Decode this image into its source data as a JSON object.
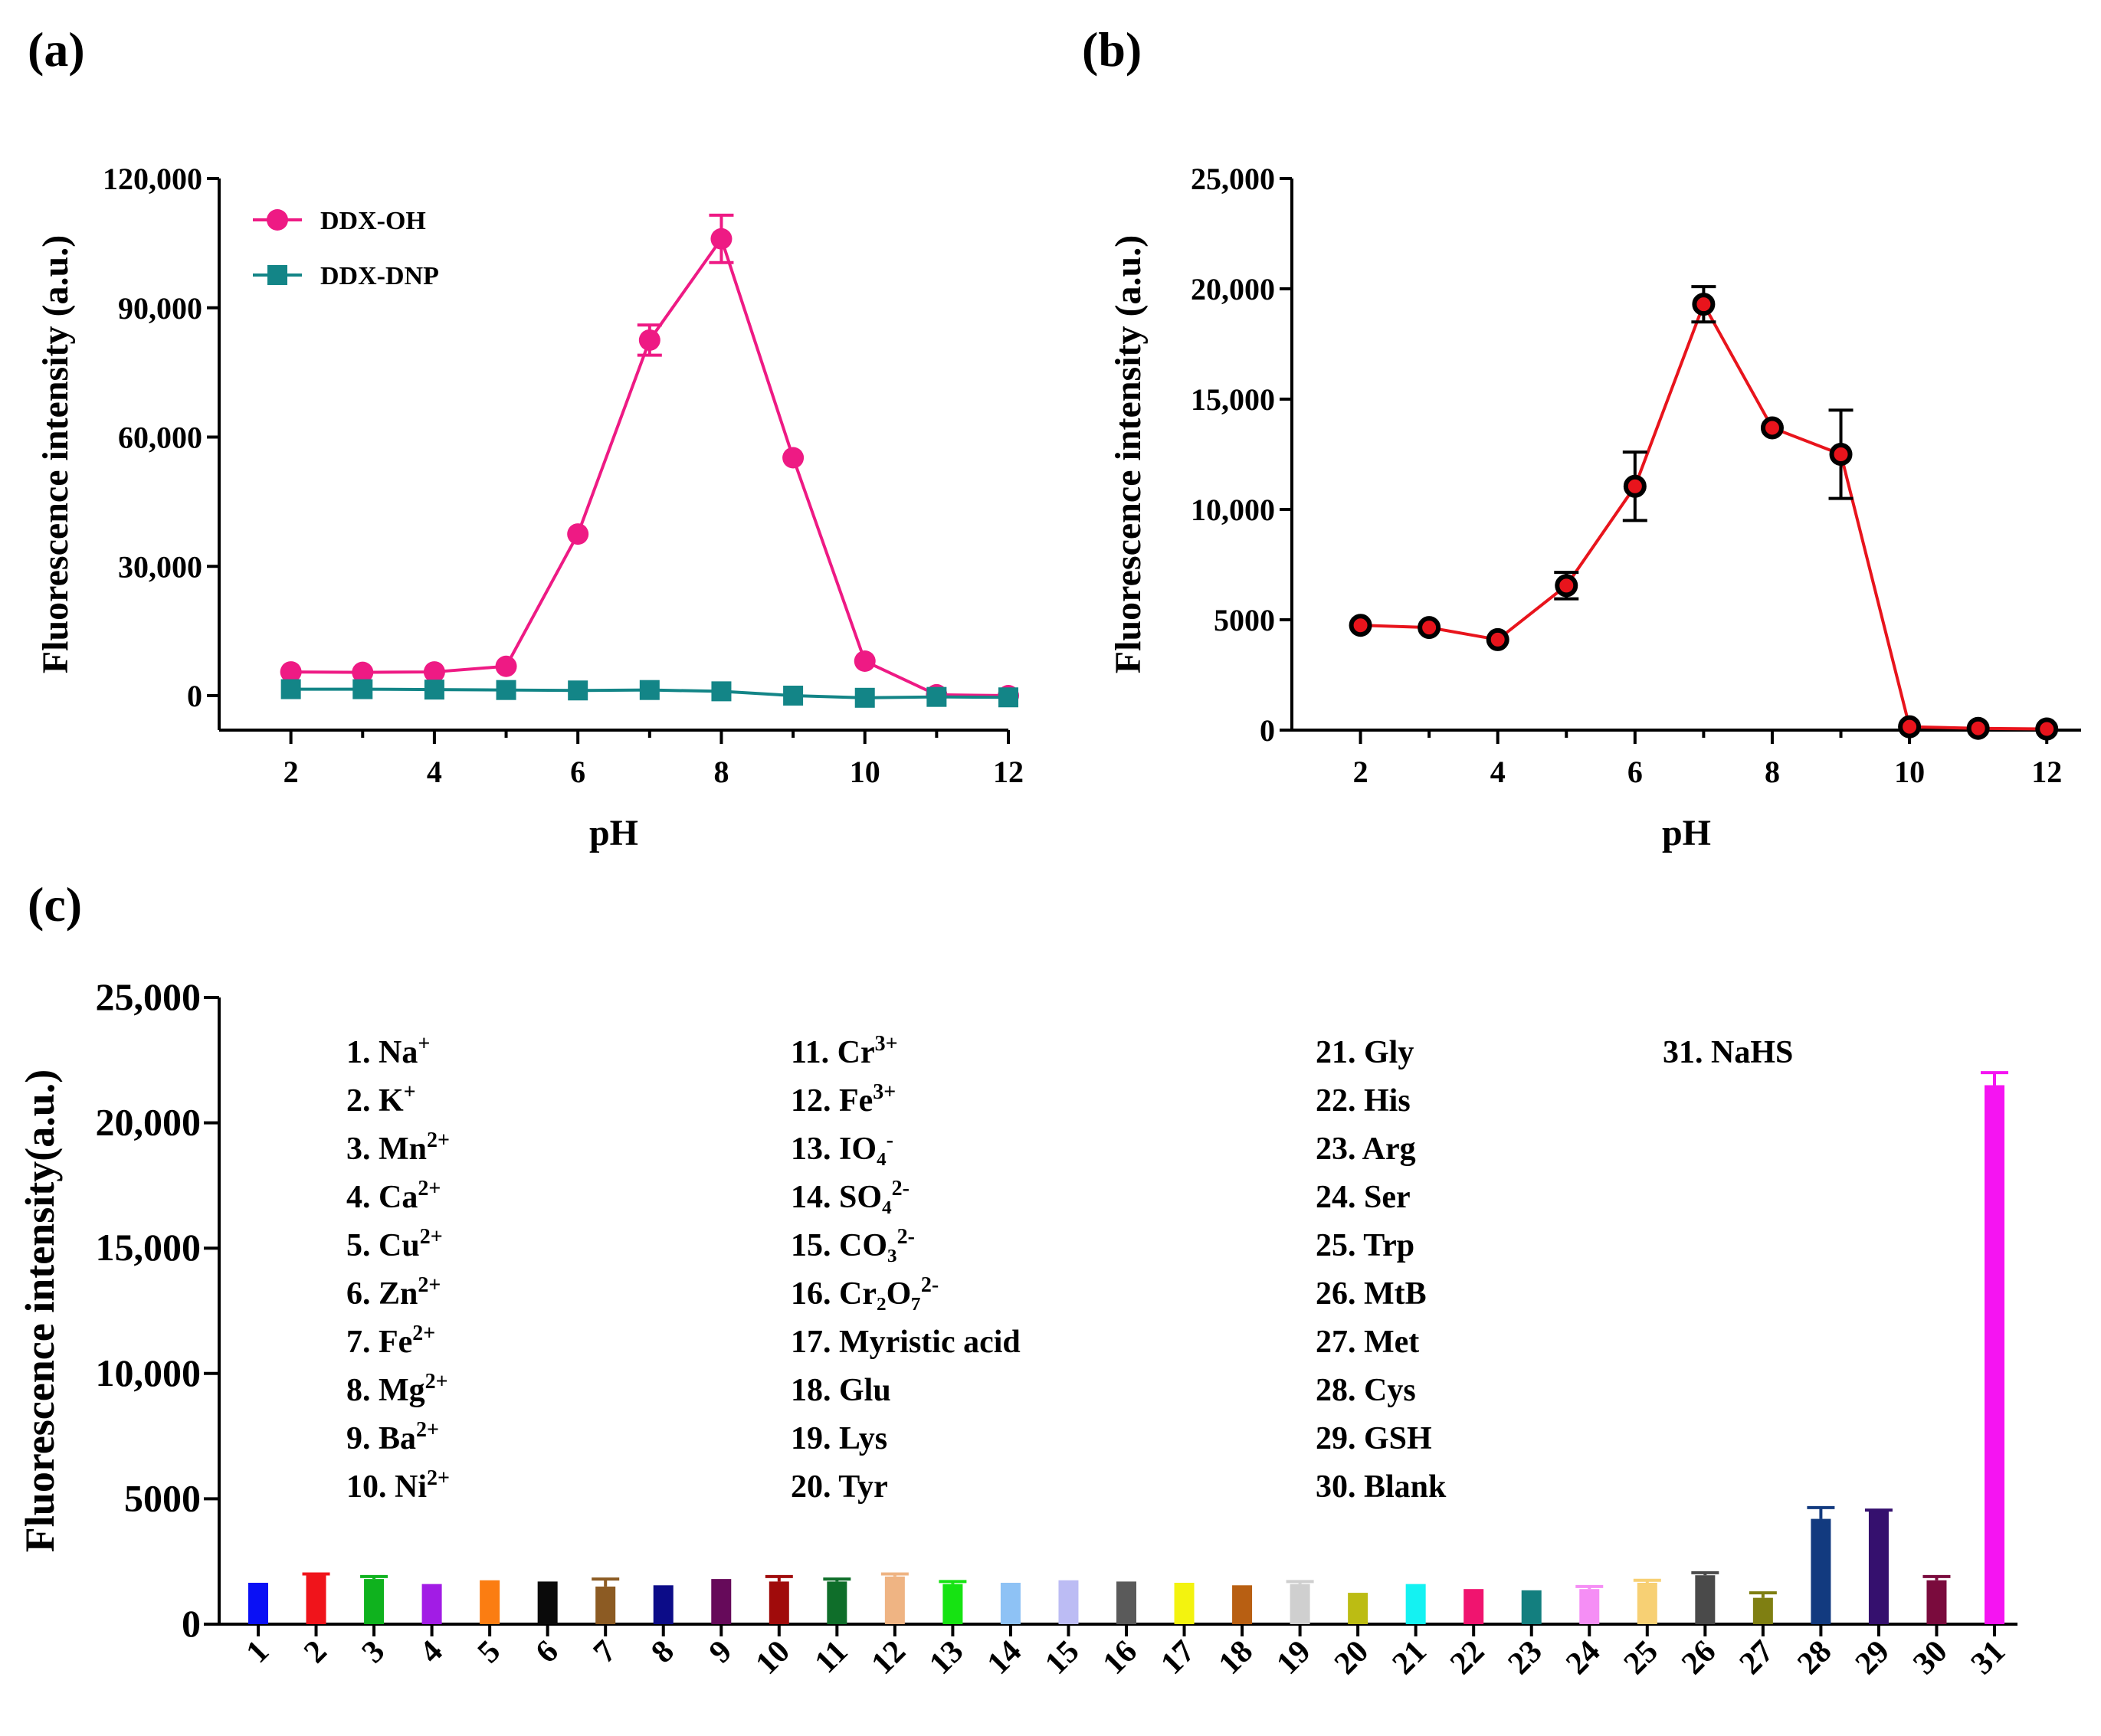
{
  "panels": {
    "a": "(a)",
    "b": "(b)",
    "c": "(c)"
  },
  "chart_data": [
    {
      "id": "a",
      "type": "line",
      "title": "",
      "xlabel": "pH",
      "ylabel": "Fluorescence intensity (a.u.)",
      "xlim": [
        1,
        12
      ],
      "ylim": [
        -8000,
        120000
      ],
      "xticks": [
        2,
        4,
        6,
        8,
        10,
        12
      ],
      "xtick_labels": [
        "2",
        "4",
        "6",
        "8",
        "10",
        "12"
      ],
      "yticks": [
        0,
        30000,
        60000,
        90000,
        120000
      ],
      "ytick_labels": [
        "0",
        "30,000",
        "60,000",
        "90,000",
        "120,000"
      ],
      "legend_position": "top-left",
      "series": [
        {
          "name": "DDX-OH",
          "color": "#ee1a84",
          "marker": "circle",
          "x": [
            2,
            3,
            4,
            5,
            6,
            7,
            8,
            9,
            10,
            11,
            12
          ],
          "values": [
            5500,
            5400,
            5500,
            6800,
            37500,
            82500,
            106000,
            55200,
            8000,
            200,
            0
          ],
          "errors": [
            0,
            0,
            0,
            0,
            0,
            3500,
            5500,
            0,
            0,
            0,
            0
          ]
        },
        {
          "name": "DDX-DNP",
          "color": "#138587",
          "marker": "square",
          "x": [
            2,
            3,
            4,
            5,
            6,
            7,
            8,
            9,
            10,
            11,
            12
          ],
          "values": [
            1500,
            1500,
            1400,
            1300,
            1200,
            1300,
            1000,
            0,
            -500,
            -300,
            -400
          ],
          "errors": [
            0,
            0,
            0,
            0,
            0,
            0,
            0,
            0,
            0,
            0,
            0
          ]
        }
      ]
    },
    {
      "id": "b",
      "type": "line",
      "title": "",
      "xlabel": "pH",
      "ylabel": "Fluorescence intensity (a.u.)",
      "xlim": [
        1,
        12.5
      ],
      "ylim": [
        0,
        25000
      ],
      "xticks": [
        2,
        4,
        6,
        8,
        10,
        12
      ],
      "xtick_labels": [
        "2",
        "4",
        "6",
        "8",
        "10",
        "12"
      ],
      "yticks": [
        0,
        5000,
        10000,
        15000,
        20000,
        25000
      ],
      "ytick_labels": [
        "0",
        "5000",
        "10,000",
        "15,000",
        "20,000",
        "25,000"
      ],
      "series": [
        {
          "name": "",
          "color": "#e8141c",
          "marker": "circle",
          "x": [
            2,
            3,
            4,
            5,
            6,
            7,
            8,
            9,
            10,
            11,
            12
          ],
          "values": [
            4750,
            4650,
            4100,
            6550,
            11050,
            19300,
            13700,
            12500,
            150,
            80,
            50
          ],
          "errors": [
            0,
            0,
            0,
            600,
            1550,
            800,
            0,
            2000,
            0,
            0,
            0
          ]
        }
      ]
    },
    {
      "id": "c",
      "type": "bar",
      "title": "",
      "xlabel": "",
      "ylabel": "Fluorescence intensity(a.u.)",
      "ylim": [
        0,
        25000
      ],
      "yticks": [
        0,
        5000,
        10000,
        15000,
        20000,
        25000
      ],
      "ytick_labels": [
        "0",
        "5000",
        "10,000",
        "15,000",
        "20,000",
        "25,000"
      ],
      "categories": [
        "1",
        "2",
        "3",
        "4",
        "5",
        "6",
        "7",
        "8",
        "9",
        "10",
        "11",
        "12",
        "13",
        "14",
        "15",
        "16",
        "17",
        "18",
        "19",
        "20",
        "21",
        "22",
        "23",
        "24",
        "25",
        "26",
        "27",
        "28",
        "29",
        "30",
        "31"
      ],
      "values": [
        1650,
        1950,
        1800,
        1600,
        1750,
        1700,
        1500,
        1550,
        1800,
        1700,
        1700,
        1900,
        1600,
        1650,
        1750,
        1700,
        1650,
        1550,
        1600,
        1250,
        1600,
        1400,
        1350,
        1400,
        1650,
        1950,
        1050,
        4200,
        4500,
        1750,
        21500
      ],
      "errors": [
        0,
        50,
        100,
        0,
        0,
        0,
        300,
        0,
        0,
        200,
        100,
        100,
        100,
        0,
        0,
        0,
        0,
        0,
        100,
        0,
        0,
        0,
        0,
        100,
        100,
        100,
        200,
        450,
        50,
        150,
        500
      ],
      "colors": [
        "#0a10f5",
        "#f0141b",
        "#0fb21e",
        "#a21ce5",
        "#fb7d12",
        "#0a0a0a",
        "#8c5b23",
        "#0c0c88",
        "#660a5a",
        "#a00b0b",
        "#0f6e2a",
        "#efb483",
        "#16e312",
        "#8ec2f5",
        "#bcbcf4",
        "#5a5a5a",
        "#f3f30f",
        "#b85f12",
        "#cfcfcf",
        "#bcbc13",
        "#14f2f2",
        "#f0146f",
        "#137f7f",
        "#f58ef5",
        "#f7d074",
        "#4a4a4a",
        "#7f7f12",
        "#123a7f",
        "#35106e",
        "#7a0b3d",
        "#f514f2"
      ],
      "key": [
        [
          "1. Na",
          "+"
        ],
        [
          "2. K",
          "+"
        ],
        [
          "3. Mn",
          "2+"
        ],
        [
          "4. Ca",
          "2+"
        ],
        [
          "5. Cu",
          "2+"
        ],
        [
          "6. Zn",
          "2+"
        ],
        [
          "7. Fe",
          "2+"
        ],
        [
          "8. Mg",
          "2+"
        ],
        [
          "9. Ba",
          "2+"
        ],
        [
          "10. Ni",
          "2+"
        ],
        [
          "11. Cr",
          "3+"
        ],
        [
          "12. Fe",
          "3+"
        ],
        [
          "13. IO₄",
          "-"
        ],
        [
          "14. SO₄",
          "2-"
        ],
        [
          "15. CO₃",
          "2-"
        ],
        [
          "16. Cr₂O₇",
          "2-"
        ],
        [
          "17. Myristic acid",
          ""
        ],
        [
          "18. Glu",
          ""
        ],
        [
          "19. Lys",
          ""
        ],
        [
          "20. Tyr",
          ""
        ],
        [
          "21. Gly",
          ""
        ],
        [
          "22. His",
          ""
        ],
        [
          "23. Arg",
          ""
        ],
        [
          "24. Ser",
          ""
        ],
        [
          "25. Trp",
          ""
        ],
        [
          "26. MtB",
          ""
        ],
        [
          "27. Met",
          ""
        ],
        [
          "28. Cys",
          ""
        ],
        [
          "29. GSH",
          ""
        ],
        [
          "30. Blank",
          ""
        ],
        [
          "31. NaHS",
          ""
        ]
      ]
    }
  ]
}
